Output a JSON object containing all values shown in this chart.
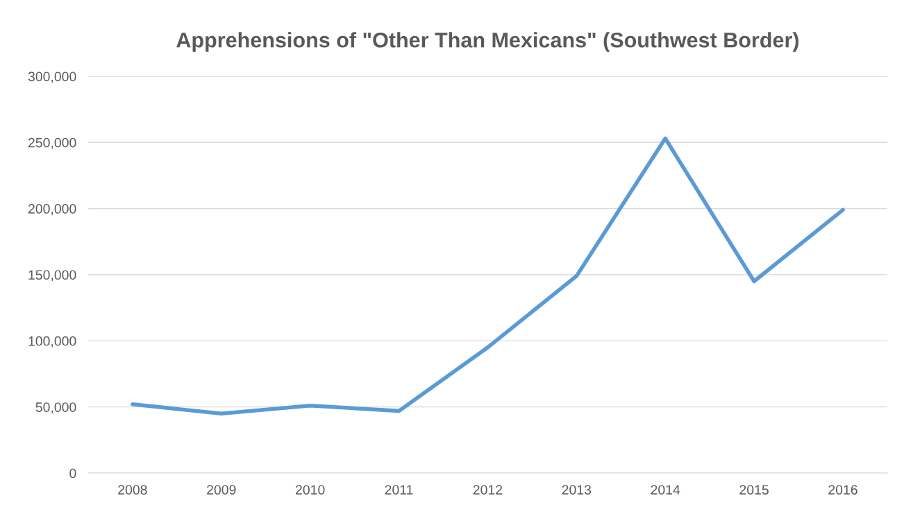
{
  "chart_data": {
    "type": "line",
    "title": "Apprehensions of \"Other Than Mexicans\" (Southwest Border)",
    "categories": [
      "2008",
      "2009",
      "2010",
      "2011",
      "2012",
      "2013",
      "2014",
      "2015",
      "2016"
    ],
    "series": [
      {
        "color": "#5b9bd5",
        "values": [
          52000,
          45000,
          51000,
          47000,
          95000,
          149000,
          253000,
          145000,
          199000
        ]
      }
    ],
    "ylim": [
      0,
      300000
    ],
    "yticks": [
      0,
      {
        "value": 50000,
        "label": "50,000"
      },
      {
        "value": 100000,
        "label": "100,000"
      },
      {
        "value": 150000,
        "label": "150,000"
      },
      {
        "value": 200000,
        "label": "200,000"
      },
      {
        "value": 250000,
        "label": "250,000"
      },
      {
        "value": 300000,
        "label": "300,000"
      }
    ],
    "grid": "y",
    "marker": "none",
    "line_style": "solid"
  }
}
